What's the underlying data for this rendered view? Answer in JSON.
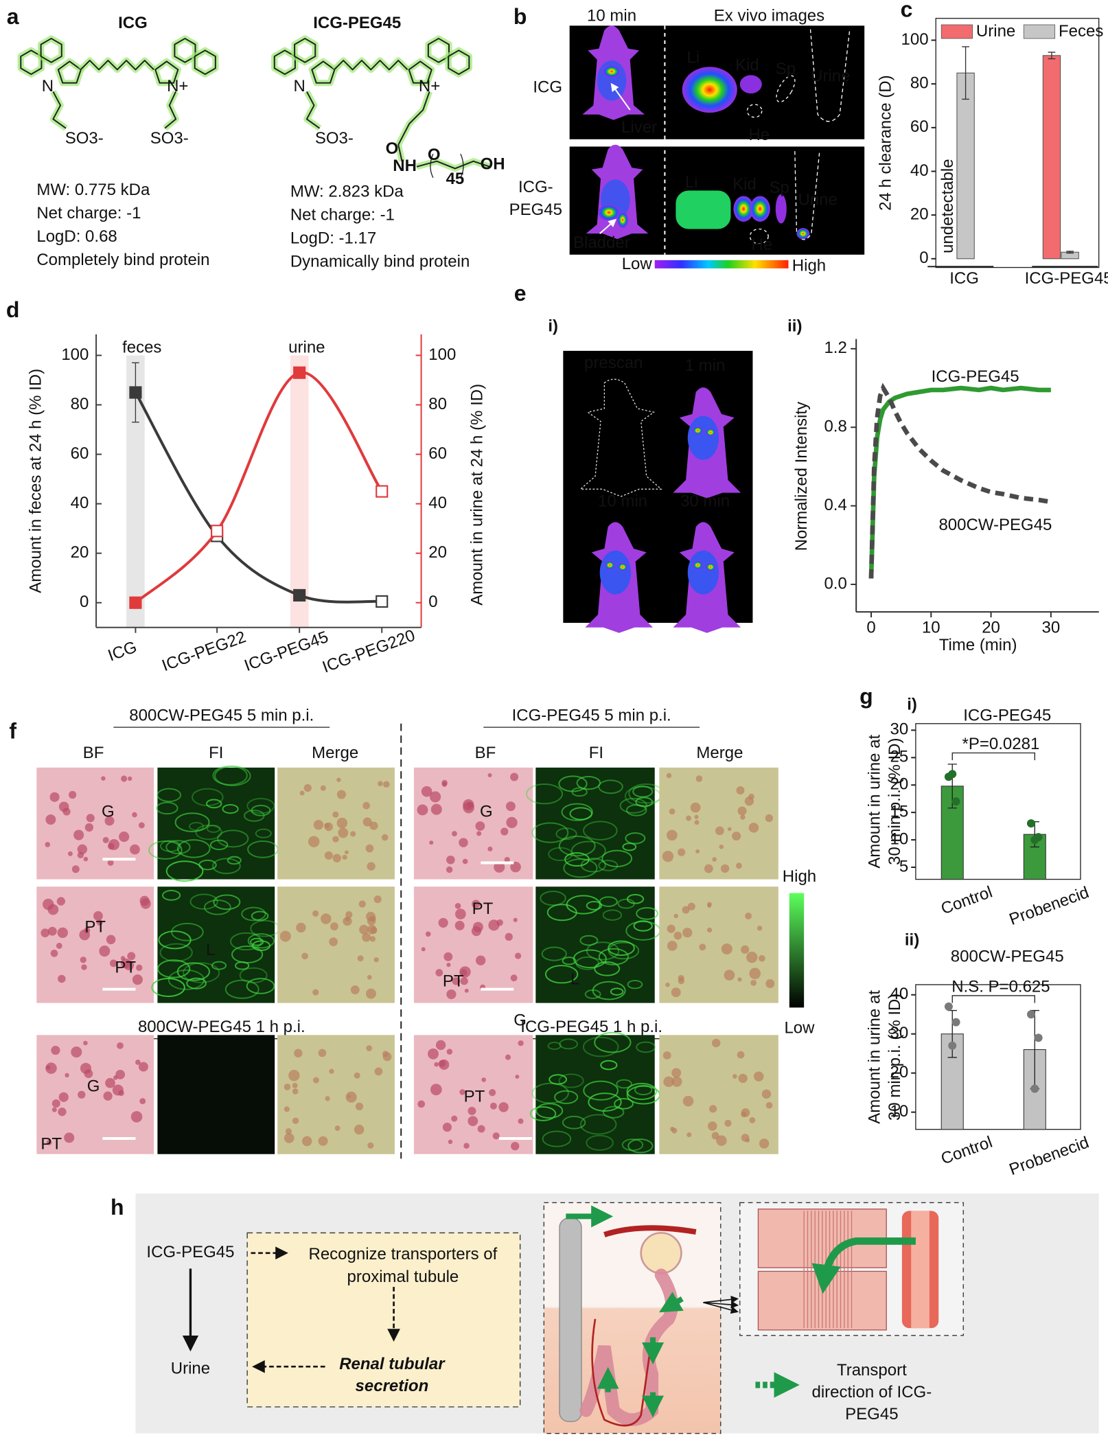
{
  "panels": {
    "a": {
      "label": "a",
      "molecules": [
        {
          "name": "ICG",
          "atoms": [
            "N",
            "N+",
            "SO3-",
            "SO3-"
          ],
          "properties": [
            "MW: 0.775 kDa",
            "Net charge: -1",
            "LogD: 0.68",
            "Completely bind protein"
          ]
        },
        {
          "name": "ICG-PEG45",
          "atoms": [
            "N",
            "N+",
            "SO3-",
            "O",
            "NH",
            "O",
            "45",
            "OH"
          ],
          "properties": [
            "MW: 2.823 kDa",
            "Net charge: -1",
            "LogD: -1.17",
            "Dynamically bind protein"
          ]
        }
      ]
    },
    "b": {
      "label": "b",
      "headers": [
        "10 min",
        "Ex vivo images"
      ],
      "rows": [
        {
          "name": [
            "ICG"
          ],
          "organs": [
            "Liver",
            "Li",
            "Kid",
            "Sp",
            "Urine",
            "He"
          ]
        },
        {
          "name": [
            "ICG-",
            "PEG45"
          ],
          "organs": [
            "Bladder",
            "Li",
            "Kid",
            "Sp",
            "Urine",
            "He"
          ]
        }
      ],
      "colorbar": [
        "Low",
        "High"
      ]
    },
    "e": {
      "label": "e",
      "sublabel": "i)",
      "frames": [
        "prescan",
        "1 min",
        "10 min",
        "30 min"
      ]
    },
    "f": {
      "label": "f",
      "titles": [
        "800CW-PEG45 5 min p.i.",
        "ICG-PEG45 5 min p.i.",
        "800CW-PEG45 1 h p.i.",
        "ICG-PEG45 1 h p.i."
      ],
      "columns": [
        "BF",
        "FI",
        "Merge",
        "BF",
        "FI",
        "Merge"
      ],
      "tile_labels": [
        "G",
        "PT",
        "PT",
        "L",
        "G",
        "PT",
        "G",
        "PT",
        "PT",
        "L",
        "G",
        "PT"
      ],
      "colorbar": [
        "High",
        "Low"
      ]
    },
    "g": {
      "label": "g"
    },
    "h": {
      "label": "h",
      "drug": "ICG-PEG45",
      "urine": "Urine",
      "step1": [
        "Recognize transporters of",
        "proximal tubule"
      ],
      "step2": [
        "Renal tubular",
        "secretion"
      ],
      "legend": [
        "Transport",
        "direction of ICG-",
        "PEG45"
      ]
    }
  },
  "chart_data": [
    {
      "type": "bar",
      "panel_label": "c",
      "ylabel": "24 h clearance (D)",
      "categories": [
        "ICG",
        "ICG-PEG45"
      ],
      "series": [
        {
          "name": "Urine",
          "color": "#f26b6e",
          "values": [
            null,
            93
          ],
          "errors": [
            null,
            1.5
          ]
        },
        {
          "name": "Feces",
          "color": "#c6c6c6",
          "values": [
            85,
            3
          ],
          "errors": [
            12,
            0.4
          ]
        }
      ],
      "annotation": "undetectable",
      "ylim": [
        -4,
        110
      ],
      "yticks": [
        0,
        20,
        40,
        60,
        80,
        100
      ]
    },
    {
      "type": "line",
      "panel_label": "d",
      "ylabel": "Amount in feces at 24 h (% ID)",
      "y2label": "Amount in urine at 24 h (% ID)",
      "categories": [
        "ICG",
        "ICG-PEG22",
        "ICG-PEG45",
        "ICG-PEG220"
      ],
      "series": [
        {
          "name": "feces",
          "color": "#3a3a3a",
          "values": [
            85,
            27,
            3,
            0.5
          ],
          "errors": [
            12,
            null,
            null,
            null
          ],
          "marker_filled": [
            true,
            false,
            true,
            false
          ]
        },
        {
          "name": "urine",
          "color": "#e03a3c",
          "axis": "y2",
          "values": [
            0,
            29,
            93,
            45
          ],
          "errors": [
            null,
            null,
            2,
            null
          ],
          "marker_filled": [
            true,
            false,
            true,
            false
          ]
        }
      ],
      "ylim": [
        -10,
        108.5
      ],
      "yticks": [
        0,
        20,
        40,
        60,
        80,
        100
      ],
      "y2lim": [
        -10,
        108.5
      ],
      "y2ticks": [
        0,
        20,
        40,
        60,
        80,
        100
      ]
    },
    {
      "type": "line",
      "panel_label": "ii)",
      "ylabel": "Normalized Intensity",
      "xlabel": "Time (min)",
      "x": [
        0,
        0.5,
        1,
        1.5,
        2,
        3,
        4,
        5,
        6,
        8,
        10,
        12,
        15,
        18,
        20,
        22,
        25,
        28,
        30
      ],
      "series": [
        {
          "name": "ICG-PEG45",
          "color": "#2f9a30",
          "style": "solid",
          "values": [
            0.03,
            0.55,
            0.75,
            0.84,
            0.89,
            0.93,
            0.95,
            0.96,
            0.97,
            0.98,
            0.99,
            0.99,
            1.0,
            0.99,
            1.0,
            0.99,
            1.0,
            0.99,
            0.99
          ]
        },
        {
          "name": "800CW-PEG45",
          "color": "#4a4a4a",
          "style": "dashed",
          "values": [
            0.03,
            0.6,
            0.85,
            0.96,
            1.0,
            0.95,
            0.88,
            0.82,
            0.77,
            0.69,
            0.63,
            0.58,
            0.53,
            0.49,
            0.47,
            0.46,
            0.44,
            0.43,
            0.42
          ]
        }
      ],
      "xlim": [
        -2.5,
        38
      ],
      "xticks": [
        0,
        10,
        20,
        30
      ],
      "ylim": [
        -0.14,
        1.25
      ],
      "yticks": [
        {
          "value": 0,
          "label": "0.0"
        },
        0.4,
        0.8,
        1.2
      ]
    },
    {
      "type": "bar",
      "panel_label": "i)",
      "title": "ICG-PEG45",
      "ylabel": [
        "Amount in urine at",
        "30 min p.i. (% ID)"
      ],
      "categories": [
        "Control",
        "Probenecid"
      ],
      "values": [
        19.8,
        11
      ],
      "errors": [
        4,
        2.3
      ],
      "points": [
        [
          21.5,
          17,
          22
        ],
        [
          13,
          10.5,
          10
        ]
      ],
      "color": "#3c9a3c",
      "point_color": "#24702a",
      "annotation": "*P=0.0281",
      "ylim": [
        2.8,
        31.2
      ],
      "yticks": [
        5,
        10,
        15,
        20,
        25,
        30
      ]
    },
    {
      "type": "bar",
      "panel_label": "ii)",
      "title": "800CW-PEG45",
      "ylabel": [
        "Amount in urine at",
        "30 min p.i. (% ID)"
      ],
      "categories": [
        "Control",
        "Probenecid"
      ],
      "values": [
        30,
        26
      ],
      "errors": [
        6,
        10
      ],
      "points": [
        [
          37,
          33,
          27
        ],
        [
          35,
          29,
          16
        ]
      ],
      "color": "#c2c2c2",
      "point_color": "#7a7a7a",
      "annotation": "N.S. P=0.625",
      "ylim": [
        5.6,
        42.6
      ],
      "yticks": [
        10,
        20,
        30,
        40
      ]
    }
  ]
}
